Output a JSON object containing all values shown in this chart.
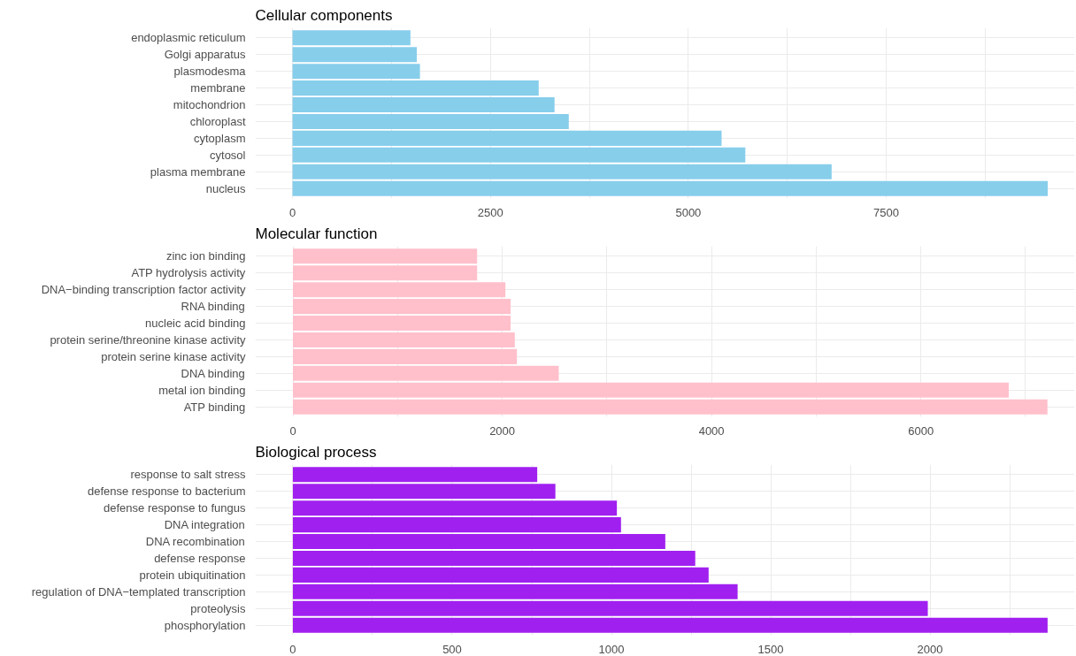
{
  "chart_data": [
    {
      "type": "bar",
      "orientation": "horizontal",
      "title": "Cellular components",
      "color": "#87ceeb",
      "grid": true,
      "categories": [
        "endoplasmic reticulum",
        "Golgi apparatus",
        "plasmodesma",
        "membrane",
        "mitochondrion",
        "chloroplast",
        "cytoplasm",
        "cytosol",
        "plasma membrane",
        "nucleus"
      ],
      "values": [
        1490,
        1570,
        1610,
        3110,
        3310,
        3490,
        5420,
        5720,
        6810,
        9540
      ],
      "xlim": [
        -470,
        9880
      ],
      "xticks": [
        0,
        {
          "value": 1250,
          "label": null
        },
        2500,
        {
          "value": 3750,
          "label": null
        },
        5000,
        {
          "value": 6250,
          "label": null
        },
        7500,
        {
          "value": 8750,
          "label": null
        }
      ]
    },
    {
      "type": "bar",
      "orientation": "horizontal",
      "title": "Molecular function",
      "color": "#ffc0cb",
      "grid": true,
      "categories": [
        "zinc ion binding",
        "ATP hydrolysis activity",
        "DNA−binding transcription factor activity",
        "RNA binding",
        "nucleic acid binding",
        "protein serine/threonine kinase activity",
        "protein serine kinase activity",
        "DNA binding",
        "metal ion binding",
        "ATP binding"
      ],
      "values": [
        1760,
        1760,
        2030,
        2080,
        2080,
        2120,
        2140,
        2540,
        6840,
        7210
      ],
      "xlim": [
        -360,
        7470
      ],
      "xticks": [
        0,
        {
          "value": 1000,
          "label": null
        },
        2000,
        {
          "value": 3000,
          "label": null
        },
        4000,
        {
          "value": 5000,
          "label": null
        },
        6000,
        {
          "value": 7000,
          "label": null
        }
      ]
    },
    {
      "type": "bar",
      "orientation": "horizontal",
      "title": "Biological process",
      "color": "#a020f0",
      "grid": true,
      "categories": [
        "response to salt stress",
        "defense response to bacterium",
        "defense response to fungus",
        "DNA integration",
        "DNA recombination",
        "defense response",
        "protein ubiquitination",
        "regulation of DNA−templated transcription",
        "proteolysis",
        "phosphorylation"
      ],
      "values": [
        767,
        824,
        1017,
        1030,
        1169,
        1263,
        1305,
        1396,
        1993,
        2369
      ],
      "xlim": [
        -118,
        2454
      ],
      "xticks": [
        0,
        {
          "value": 250,
          "label": null
        },
        500,
        {
          "value": 750,
          "label": null
        },
        1000,
        {
          "value": 1250,
          "label": null
        },
        1500,
        {
          "value": 1750,
          "label": null
        },
        2000,
        {
          "value": 2250,
          "label": null
        }
      ]
    }
  ]
}
